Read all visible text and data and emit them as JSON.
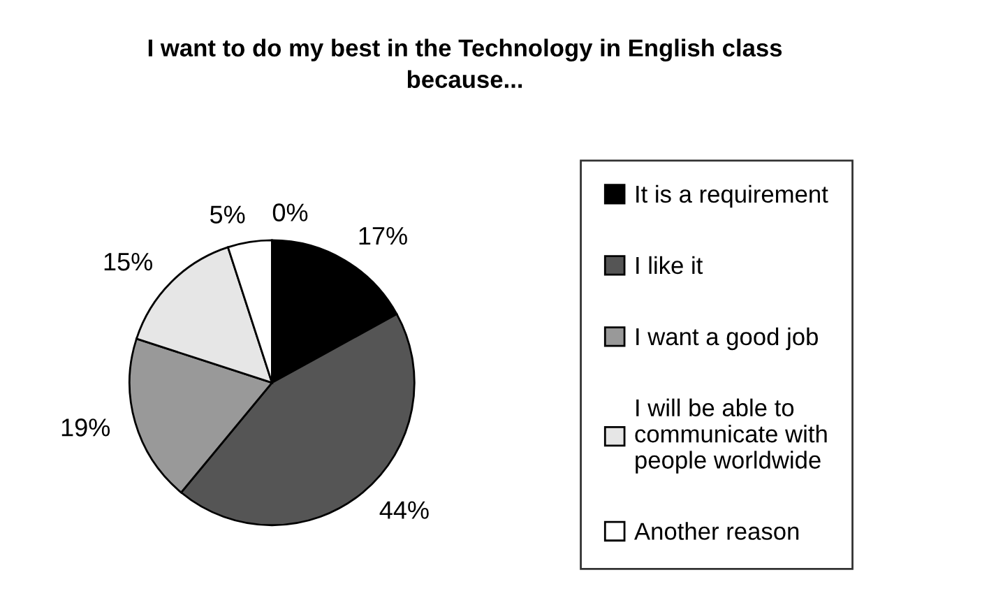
{
  "chart_data": {
    "type": "pie",
    "title": "I want to do my best in the Technology in English class because...",
    "categories": [
      "It is a requirement",
      "I like it",
      "I want a good job",
      "I will be able to communicate with people worldwide",
      "Another reason",
      null
    ],
    "values": [
      17,
      44,
      19,
      15,
      5,
      0
    ],
    "colors": [
      "#000000",
      "#555555",
      "#999999",
      "#e6e6e6",
      "#ffffff",
      "#ffffff"
    ],
    "value_labels": [
      "17%",
      "44%",
      "19%",
      "15%",
      "5%",
      "0%"
    ],
    "legend": "right"
  }
}
